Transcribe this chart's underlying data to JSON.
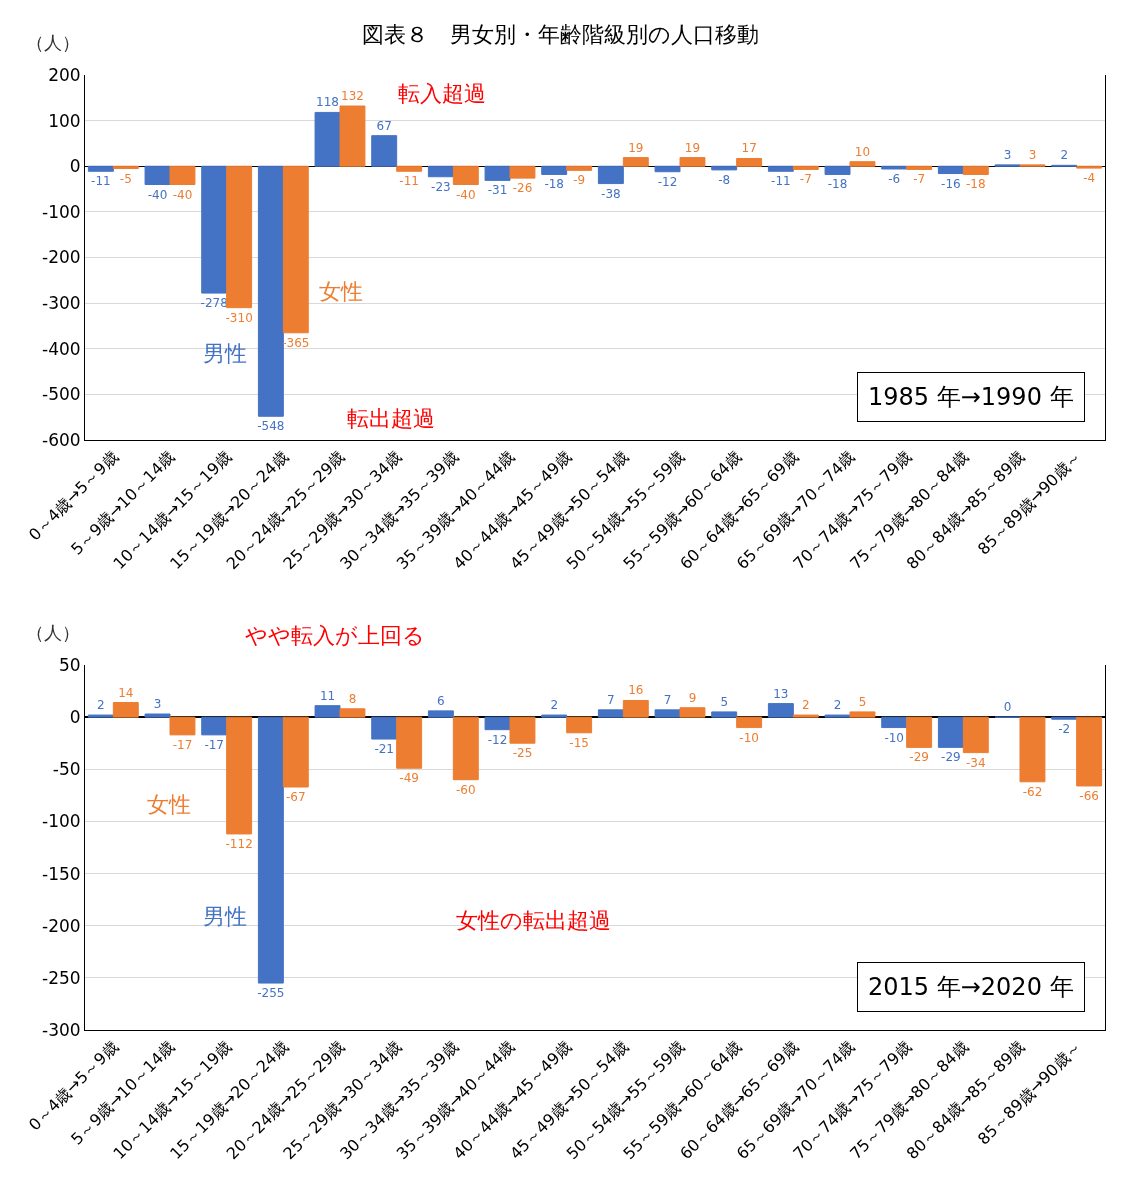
{
  "chart_data": [
    {
      "type": "bar",
      "title": "図表８　男女別・年齢階級別の人口移動",
      "ylabel": "（人）",
      "categories": [
        "0～4歳→5～9歳",
        "5～9歳→10～14歳",
        "10～14歳→15～19歳",
        "15～19歳→20～24歳",
        "20～24歳→25～29歳",
        "25～29歳→30～34歳",
        "30～34歳→35～39歳",
        "35～39歳→40～44歳",
        "40～44歳→45～49歳",
        "45～49歳→50～54歳",
        "50～54歳→55～59歳",
        "55～59歳→60～64歳",
        "60～64歳→65～69歳",
        "65～69歳→70～74歳",
        "70～74歳→75～79歳",
        "75～79歳→80～84歳",
        "80～84歳→85～89歳",
        "85～89歳→90歳～"
      ],
      "series": [
        {
          "name": "男性",
          "color": "#4472c4",
          "values": [
            -11,
            -40,
            -278,
            -548,
            118,
            67,
            -23,
            -31,
            -18,
            -38,
            -12,
            -8,
            -11,
            -18,
            -6,
            -16,
            3,
            2
          ]
        },
        {
          "name": "女性",
          "color": "#ed7d31",
          "values": [
            -5,
            -40,
            -310,
            -365,
            132,
            -11,
            -40,
            -26,
            -9,
            19,
            19,
            17,
            -7,
            10,
            -7,
            -18,
            3,
            -4
          ]
        }
      ],
      "ylim": [
        -600,
        200
      ],
      "yticks": [
        -600,
        -500,
        -400,
        -300,
        -200,
        -100,
        0,
        100,
        200
      ],
      "grid": "y",
      "data_labels": true,
      "annotations": [
        "転入超過",
        "転出超過",
        "1985 年→1990 年"
      ]
    },
    {
      "type": "bar",
      "ylabel": "（人）",
      "categories": [
        "0～4歳→5～9歳",
        "5～9歳→10～14歳",
        "10～14歳→15～19歳",
        "15～19歳→20～24歳",
        "20～24歳→25～29歳",
        "25～29歳→30～34歳",
        "30～34歳→35～39歳",
        "35～39歳→40～44歳",
        "40～44歳→45～49歳",
        "45～49歳→50～54歳",
        "50～54歳→55～59歳",
        "55～59歳→60～64歳",
        "60～64歳→65～69歳",
        "65～69歳→70～74歳",
        "70～74歳→75～79歳",
        "75～79歳→80～84歳",
        "80～84歳→85～89歳",
        "85～89歳→90歳～"
      ],
      "series": [
        {
          "name": "男性",
          "color": "#4472c4",
          "values": [
            2,
            3,
            -17,
            -255,
            11,
            -21,
            6,
            -12,
            2,
            7,
            7,
            5,
            13,
            2,
            -10,
            -29,
            0,
            -2
          ]
        },
        {
          "name": "女性",
          "color": "#ed7d31",
          "values": [
            14,
            -17,
            -112,
            -67,
            8,
            -49,
            -60,
            -25,
            -15,
            16,
            9,
            -10,
            2,
            5,
            -29,
            -34,
            -62,
            -66
          ]
        }
      ],
      "ylim": [
        -300,
        50
      ],
      "yticks": [
        -300,
        -250,
        -200,
        -150,
        -100,
        -50,
        0,
        50
      ],
      "grid": "y",
      "data_labels": true,
      "annotations": [
        "やや転入が上回る",
        "女性の転出超過",
        "2015 年→2020 年"
      ]
    }
  ]
}
